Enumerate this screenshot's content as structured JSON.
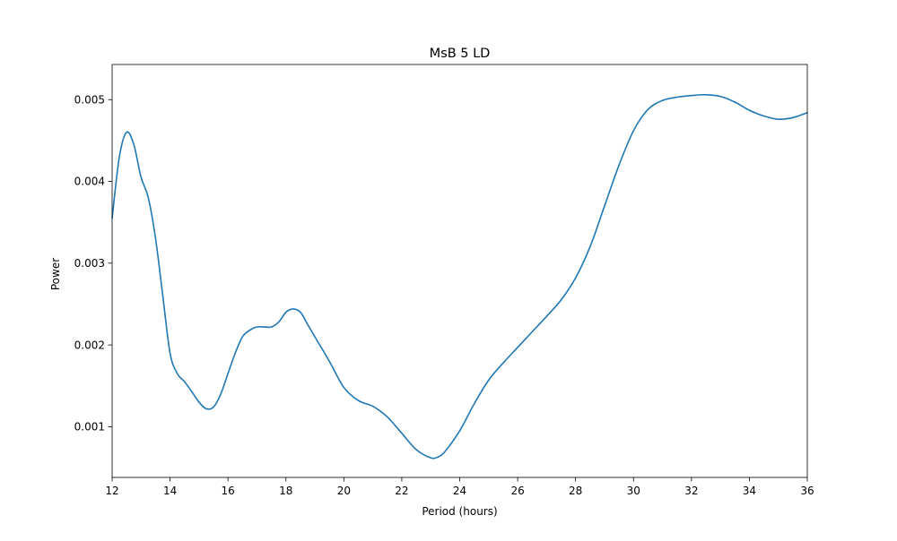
{
  "chart_data": {
    "type": "line",
    "title": "MsB 5 LD",
    "xlabel": "Period (hours)",
    "ylabel": "Power",
    "xlim": [
      12,
      36
    ],
    "ylim": [
      0.00038,
      0.00543
    ],
    "xticks": [
      12,
      14,
      16,
      18,
      20,
      22,
      24,
      26,
      28,
      30,
      32,
      34,
      36
    ],
    "xtick_labels": [
      "12",
      "14",
      "16",
      "18",
      "20",
      "22",
      "24",
      "26",
      "28",
      "30",
      "32",
      "34",
      "36"
    ],
    "yticks": [
      0.001,
      0.002,
      0.003,
      0.004,
      0.005
    ],
    "ytick_labels": [
      "0.001",
      "0.002",
      "0.003",
      "0.004",
      "0.005"
    ],
    "grid": false,
    "legend": "none",
    "series": [
      {
        "color": "#1f77b4",
        "x": [
          12.0,
          12.25,
          12.5,
          12.75,
          13.0,
          13.25,
          13.5,
          13.75,
          14.0,
          14.25,
          14.5,
          14.75,
          15.0,
          15.25,
          15.5,
          15.75,
          16.0,
          16.25,
          16.5,
          16.75,
          17.0,
          17.25,
          17.5,
          17.75,
          18.0,
          18.25,
          18.5,
          18.75,
          19.0,
          19.5,
          20.0,
          20.5,
          21.0,
          21.5,
          22.0,
          22.5,
          23.0,
          23.25,
          23.5,
          24.0,
          24.5,
          25.0,
          25.5,
          26.0,
          26.5,
          27.0,
          27.5,
          28.0,
          28.5,
          29.0,
          29.5,
          30.0,
          30.5,
          31.0,
          31.5,
          32.0,
          32.5,
          33.0,
          33.5,
          34.0,
          34.5,
          35.0,
          35.5,
          36.0
        ],
        "y": [
          0.00355,
          0.0043,
          0.0046,
          0.00445,
          0.00405,
          0.0038,
          0.0033,
          0.0026,
          0.0019,
          0.00165,
          0.00155,
          0.00143,
          0.0013,
          0.00122,
          0.00124,
          0.0014,
          0.00165,
          0.0019,
          0.0021,
          0.00218,
          0.00222,
          0.00222,
          0.00222,
          0.00228,
          0.0024,
          0.00244,
          0.0024,
          0.00225,
          0.0021,
          0.0018,
          0.00148,
          0.00132,
          0.00125,
          0.00112,
          0.00092,
          0.00072,
          0.00062,
          0.00063,
          0.0007,
          0.00095,
          0.00128,
          0.00157,
          0.00178,
          0.00197,
          0.00216,
          0.00235,
          0.00255,
          0.00282,
          0.0032,
          0.0037,
          0.0042,
          0.00462,
          0.00488,
          0.00499,
          0.00503,
          0.00505,
          0.00506,
          0.00504,
          0.00497,
          0.00487,
          0.0048,
          0.00476,
          0.00478,
          0.00484
        ]
      }
    ]
  }
}
